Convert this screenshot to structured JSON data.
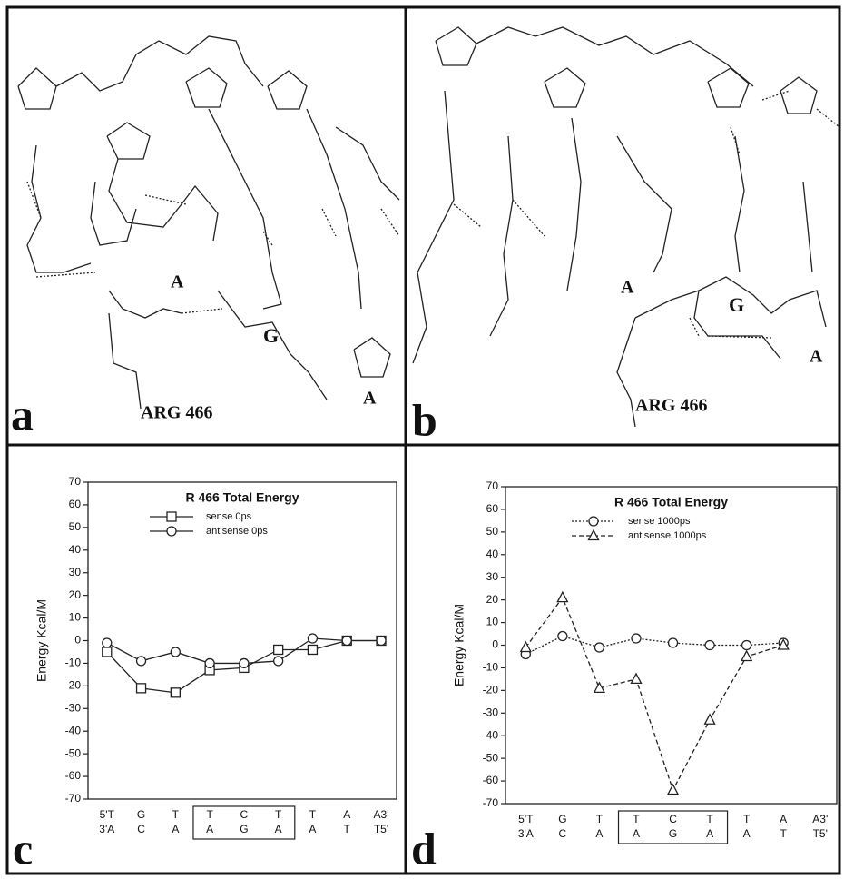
{
  "structures": [
    {
      "panel_label": "a",
      "labels": [
        "A",
        "G",
        "ARG 466",
        "A"
      ]
    },
    {
      "panel_label": "b",
      "labels": [
        "A",
        "G",
        "A",
        "ARG 466"
      ]
    }
  ],
  "chart_data": [
    {
      "type": "line",
      "panel_label": "c",
      "title": "R 466  Total Energy",
      "y_label": "Energy  Kcal/M",
      "categories": [
        "5'T",
        "G",
        "T",
        "T",
        "C",
        "T",
        "T",
        "A",
        "A3'"
      ],
      "categories_lower": [
        "3'A",
        "C",
        "A",
        "A",
        "G",
        "A",
        "A",
        "T",
        "T5'"
      ],
      "highlight": [
        3,
        5
      ],
      "ylim": [
        -70,
        70
      ],
      "yticks": [
        -70,
        -60,
        -50,
        -40,
        -30,
        -20,
        -10,
        0,
        10,
        20,
        30,
        40,
        50,
        60,
        70
      ],
      "series": [
        {
          "name": "sense  0ps",
          "color": "#222222",
          "marker": "square",
          "dash": "solid",
          "values": [
            -5,
            -21,
            -23,
            -13,
            -12,
            -4,
            -4,
            0,
            0
          ]
        },
        {
          "name": "antisense  0ps",
          "color": "#222222",
          "marker": "circle",
          "dash": "solid",
          "values": [
            -1,
            -9,
            -5,
            -10,
            -10,
            -9,
            1,
            0,
            0
          ]
        }
      ]
    },
    {
      "type": "line",
      "panel_label": "d",
      "title": "R 466  Total Energy",
      "y_label": "Energy  Kcal/M",
      "categories": [
        "5'T",
        "G",
        "T",
        "T",
        "C",
        "T",
        "T",
        "A",
        "A3'"
      ],
      "categories_lower": [
        "3'A",
        "C",
        "A",
        "A",
        "G",
        "A",
        "A",
        "T",
        "T5'"
      ],
      "highlight": [
        3,
        5
      ],
      "ylim": [
        -70,
        70
      ],
      "yticks": [
        -70,
        -60,
        -50,
        -40,
        -30,
        -20,
        -10,
        0,
        10,
        20,
        30,
        40,
        50,
        60,
        70
      ],
      "series": [
        {
          "name": "sense  1000ps",
          "color": "#222222",
          "marker": "circle",
          "dash": "dotted",
          "values": [
            -4,
            4,
            -1,
            3,
            1,
            0,
            0,
            1,
            null
          ]
        },
        {
          "name": "antisense  1000ps",
          "color": "#222222",
          "marker": "triangle",
          "dash": "dashed",
          "values": [
            -1,
            21,
            -19,
            -15,
            -64,
            -33,
            -5,
            0,
            null
          ]
        }
      ]
    }
  ]
}
